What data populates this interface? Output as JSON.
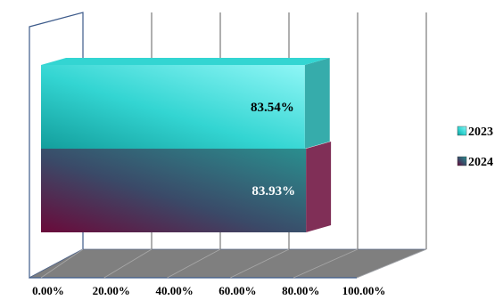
{
  "chart_data": {
    "type": "bar",
    "orientation": "horizontal",
    "three_d": true,
    "categories": [
      ""
    ],
    "series": [
      {
        "name": "2023",
        "values": [
          83.54
        ],
        "data_label": "83.54%",
        "color_light": "#8ff6f6",
        "color_mid": "#33d5d2",
        "color_dark": "#139e9c",
        "label_color": "#000000"
      },
      {
        "name": "2024",
        "values": [
          83.93
        ],
        "data_label": "83.93%",
        "color_light": "#2a8f8f",
        "color_mid": "#3a4a68",
        "color_dark": "#6a0a3a",
        "label_color": "#ffffff"
      }
    ],
    "x_ticks": [
      "0.00%",
      "20.00%",
      "40.00%",
      "60.00%",
      "80.00%",
      "100.00%"
    ],
    "xlim": [
      0,
      100
    ],
    "grid": true,
    "legend_position": "right",
    "title": "",
    "xlabel": "",
    "ylabel": ""
  }
}
